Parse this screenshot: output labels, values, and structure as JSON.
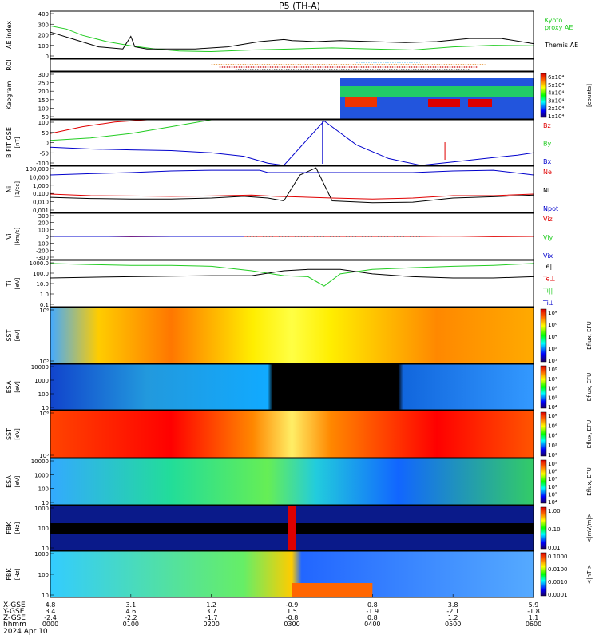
{
  "title": "P5 (TH-A)",
  "footer": {
    "date": "2024 Apr 10",
    "row_labels": [
      "X-GSE",
      "Y-GSE",
      "Z-GSE",
      "hhmm"
    ]
  },
  "colors": {
    "red": "#e00000",
    "green": "#22cc22",
    "blue": "#0000cc",
    "black": "#000000",
    "lightblue": "#55bbee"
  },
  "chart_data": [
    {
      "type": "line",
      "name": "AE index",
      "ylabel": "AE index",
      "ylim": [
        -50,
        400
      ],
      "yticks": [
        "400",
        "300",
        "200",
        "100",
        "0"
      ],
      "legend": [
        "Kyoto",
        "proxy AE",
        "Themis AE"
      ],
      "series": [
        {
          "name": "Kyoto proxy AE",
          "color": "#22cc22",
          "x": [
            0.0,
            0.2,
            0.4,
            0.7,
            1.0,
            1.3,
            1.6,
            2.0,
            2.5,
            3.0,
            3.5,
            4.0,
            4.5,
            5.0,
            5.5,
            6.0
          ],
          "y": [
            260,
            230,
            170,
            110,
            70,
            40,
            20,
            15,
            30,
            40,
            50,
            40,
            30,
            60,
            75,
            70
          ]
        },
        {
          "name": "Themis AE",
          "color": "#000000",
          "x": [
            0.0,
            0.3,
            0.6,
            0.9,
            1.0,
            1.05,
            1.2,
            1.5,
            1.8,
            2.2,
            2.6,
            2.9,
            3.0,
            3.3,
            3.6,
            4.0,
            4.4,
            4.8,
            5.2,
            5.6,
            6.0
          ],
          "y": [
            200,
            130,
            60,
            40,
            160,
            60,
            40,
            40,
            40,
            60,
            110,
            130,
            120,
            110,
            120,
            110,
            100,
            110,
            140,
            140,
            90
          ]
        }
      ]
    },
    {
      "type": "table",
      "name": "ROI",
      "ylabel": "ROI"
    },
    {
      "type": "heatmap",
      "name": "Keogram",
      "ylabel": "Keogram",
      "ylim": [
        0,
        300
      ],
      "yticks": [
        "300",
        "250",
        "200",
        "150",
        "100",
        "50"
      ],
      "colorbar_ticks": [
        "6x10⁴",
        "5x10⁴",
        "4x10⁴",
        "3x10⁴",
        "2x10⁴",
        "1x10⁴"
      ],
      "colorbar_label": "[counts]",
      "x_start": 3.6
    },
    {
      "type": "line",
      "name": "B FIT GSE",
      "ylabel": "B FIT GSE",
      "yunits": "[nT]",
      "ylim": [
        -100,
        100
      ],
      "yticks": [
        "100",
        "50",
        "0",
        "-50",
        "-100"
      ],
      "legend": [
        "Bz",
        "By",
        "Bx"
      ],
      "series": [
        {
          "name": "Bz",
          "color": "#e00000",
          "x": [
            0.0,
            0.4,
            0.8,
            1.2
          ],
          "y": [
            40,
            70,
            90,
            110
          ]
        },
        {
          "name": "By",
          "color": "#22cc22",
          "x": [
            0.0,
            0.5,
            1.0,
            1.5,
            2.0
          ],
          "y": [
            10,
            20,
            40,
            70,
            110
          ]
        },
        {
          "name": "Bx",
          "color": "#0000cc",
          "x": [
            0.0,
            0.5,
            1.0,
            1.5,
            2.0,
            2.4,
            2.7,
            2.9,
            3.4,
            3.8,
            4.2,
            4.6,
            5.0,
            5.4,
            5.8,
            6.0
          ],
          "y": [
            -20,
            -28,
            -32,
            -35,
            -45,
            -60,
            -90,
            -100,
            95,
            -10,
            -70,
            -100,
            -85,
            -70,
            -55,
            -45
          ]
        }
      ]
    },
    {
      "type": "line",
      "name": "Ni",
      "ylabel": "Ni",
      "yunits": "[1/cc]",
      "ylim": [
        0.001,
        100000
      ],
      "yscale": "log",
      "yticks": [
        "100,000",
        "10,000",
        "1,000",
        "0,100",
        "0,010",
        "0,001"
      ],
      "legend": [
        "Ne",
        "Ni",
        "Npot"
      ],
      "series": [
        {
          "name": "Ne",
          "color": "#e00000",
          "x": [
            0.0,
            0.5,
            1.0,
            1.5,
            2.0,
            2.5,
            2.8,
            3.0,
            3.5,
            4.0,
            4.5,
            5.0,
            5.5,
            6.0
          ],
          "y": [
            1.5,
            0.8,
            0.7,
            0.6,
            0.7,
            1.0,
            0.6,
            0.5,
            0.3,
            0.2,
            0.3,
            0.8,
            0.8,
            1.5
          ]
        },
        {
          "name": "Ni",
          "color": "#000000",
          "x": [
            0.0,
            0.5,
            1.0,
            1.5,
            2.0,
            2.4,
            2.7,
            2.9,
            3.1,
            3.3,
            3.5,
            4.0,
            4.5,
            5.0,
            5.5,
            6.0
          ],
          "y": [
            0.4,
            0.25,
            0.2,
            0.2,
            0.3,
            0.6,
            0.3,
            0.1,
            3000,
            50000,
            0.1,
            0.05,
            0.06,
            0.3,
            0.5,
            1.0
          ]
        },
        {
          "name": "Npot",
          "color": "#0000cc",
          "x": [
            0.0,
            0.5,
            1.0,
            1.5,
            2.0,
            2.6,
            2.7,
            3.0,
            3.5,
            4.0,
            4.5,
            5.0,
            5.5,
            6.0
          ],
          "y": [
            3000,
            5000,
            8000,
            15000,
            20000,
            20000,
            8000,
            8000,
            8000,
            8000,
            8000,
            15000,
            20000,
            3000
          ]
        }
      ]
    },
    {
      "type": "line",
      "name": "Vi",
      "ylabel": "Vi",
      "yunits": "[km/s]",
      "ylim": [
        -350,
        350
      ],
      "yticks": [
        "300",
        "200",
        "100",
        "0",
        "-100",
        "-200",
        "-300"
      ],
      "legend": [
        "Viz",
        "Viy",
        "Vix"
      ],
      "series": [
        {
          "name": "Viz",
          "color": "#e00000",
          "x": [
            0.0,
            0.5,
            1.0,
            1.5,
            2.0,
            2.4,
            4.6,
            5.0,
            5.5,
            6.0
          ],
          "y": [
            0,
            5,
            -5,
            0,
            5,
            0,
            0,
            5,
            -5,
            0
          ]
        },
        {
          "name": "Viy",
          "color": "#22cc22",
          "x": [
            0.0,
            1.0,
            2.0,
            2.4
          ],
          "y": [
            0,
            0,
            0,
            0
          ]
        },
        {
          "name": "Vix",
          "color": "#0000cc",
          "x": [
            0.0,
            1.0,
            2.0,
            2.4
          ],
          "y": [
            0,
            0,
            0,
            0
          ]
        }
      ]
    },
    {
      "type": "line",
      "name": "Ti",
      "ylabel": "Ti",
      "yunits": "[eV]",
      "ylim": [
        0.1,
        3000
      ],
      "yscale": "log",
      "yticks": [
        "1000.0",
        "100.0",
        "10.0",
        "1.0",
        "0.1"
      ],
      "legend": [
        "Te||",
        "Te⊥",
        "Ti||",
        "Ti⊥"
      ],
      "series": [
        {
          "name": "Ti||",
          "color": "#22cc22",
          "x": [
            0.0,
            0.5,
            1.0,
            1.5,
            2.0,
            2.5,
            2.9,
            3.2,
            3.4,
            3.6,
            4.0,
            4.5,
            5.0,
            5.5,
            6.0
          ],
          "y": [
            1500,
            1200,
            1000,
            1000,
            800,
            300,
            100,
            80,
            10,
            150,
            400,
            600,
            800,
            1000,
            1500
          ]
        },
        {
          "name": "Te||",
          "color": "#000000",
          "x": [
            0.0,
            0.5,
            1.0,
            1.5,
            2.0,
            2.5,
            2.9,
            3.2,
            3.6,
            4.0,
            4.5,
            5.0,
            5.5,
            6.0
          ],
          "y": [
            60,
            70,
            80,
            90,
            100,
            100,
            300,
            400,
            400,
            150,
            80,
            60,
            60,
            80
          ]
        }
      ]
    },
    {
      "type": "heatmap",
      "name": "SST ions",
      "ylabel": "SST",
      "yunits": "[eV]",
      "yticks": [
        "10⁶",
        "10⁵"
      ],
      "colorbar_ticks": [
        "10⁸",
        "10⁶",
        "10⁴",
        "10²",
        "10¹"
      ],
      "colorbar_label": "Eflux, EFU"
    },
    {
      "type": "heatmap",
      "name": "ESA ions",
      "ylabel": "ESA",
      "yunits": "[eV]",
      "yticks": [
        "10000",
        "1000",
        "100",
        "10"
      ],
      "colorbar_ticks": [
        "10⁸",
        "10⁷",
        "10⁶",
        "10⁵",
        "10⁴"
      ],
      "colorbar_label": "Eflux, EFU"
    },
    {
      "type": "heatmap",
      "name": "SST electrons",
      "ylabel": "SST",
      "yunits": "[eV]",
      "yticks": [
        "10⁶",
        "10⁵"
      ],
      "colorbar_ticks": [
        "10⁸",
        "10⁶",
        "10⁴",
        "10²",
        "10¹"
      ],
      "colorbar_label": "Eflux, EFU"
    },
    {
      "type": "heatmap",
      "name": "ESA electrons",
      "ylabel": "ESA",
      "yunits": "[eV]",
      "yticks": [
        "10000",
        "1000",
        "100",
        "10"
      ],
      "colorbar_ticks": [
        "10⁹",
        "10⁸",
        "10⁷",
        "10⁶",
        "10⁵",
        "10⁴"
      ],
      "colorbar_label": "Eflux, EFU"
    },
    {
      "type": "heatmap",
      "name": "FBK E",
      "ylabel": "FBK",
      "yunits": "[Hz]",
      "yticks": [
        "1000",
        "100",
        "10"
      ],
      "colorbar_ticks": [
        "1.00",
        "0.10",
        "0.01"
      ],
      "colorbar_label": "<|mV/m|>"
    },
    {
      "type": "heatmap",
      "name": "FBK B",
      "ylabel": "FBK",
      "yunits": "[Hz]",
      "yticks": [
        "1000",
        "100",
        "10"
      ],
      "colorbar_ticks": [
        "0.1000",
        "0.0100",
        "0.0010",
        "0.0001"
      ],
      "colorbar_label": "<|nT|>"
    }
  ],
  "xaxis": {
    "ticks": [
      {
        "x": 0,
        "xgse": "4.8",
        "ygse": "3.4",
        "zgse": "-2.4",
        "hhmm": "0000"
      },
      {
        "x": 1,
        "xgse": "3.1",
        "ygse": "4.6",
        "zgse": "-2.2",
        "hhmm": "0100"
      },
      {
        "x": 2,
        "xgse": "1.2",
        "ygse": "3.7",
        "zgse": "-1.7",
        "hhmm": "0200"
      },
      {
        "x": 3,
        "xgse": "-0.9",
        "ygse": "1.5",
        "zgse": "-0.8",
        "hhmm": "0300"
      },
      {
        "x": 4,
        "xgse": "0.8",
        "ygse": "-1.9",
        "zgse": "0.8",
        "hhmm": "0400"
      },
      {
        "x": 5,
        "xgse": "3.8",
        "ygse": "-2.1",
        "zgse": "1.2",
        "hhmm": "0500"
      },
      {
        "x": 6,
        "xgse": "5.9",
        "ygse": "-1.8",
        "zgse": "1.1",
        "hhmm": "0600"
      }
    ]
  }
}
